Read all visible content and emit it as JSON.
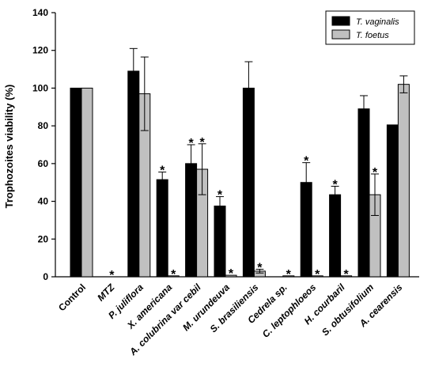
{
  "chart_data": {
    "type": "bar",
    "ylabel": "Trophozoites viability (%)",
    "ylim": [
      0,
      140
    ],
    "yticks": [
      0,
      20,
      40,
      60,
      80,
      100,
      120,
      140
    ],
    "legend_position": "top-right",
    "categories": [
      {
        "label": "Control",
        "italic": false
      },
      {
        "label": "MTZ",
        "italic": true
      },
      {
        "label": "P. juliflora",
        "italic": true
      },
      {
        "label": "X. americana",
        "italic": true
      },
      {
        "label": "A. colubrina var cebil",
        "italic": true
      },
      {
        "label": "M. urundeuva",
        "italic": true
      },
      {
        "label": "S. brasiliensis",
        "italic": true
      },
      {
        "label": "Cedrela sp.",
        "italic": true
      },
      {
        "label": "C. leptophloeos",
        "italic": true
      },
      {
        "label": "H. courbaril",
        "italic": true
      },
      {
        "label": "S. obtusifolium",
        "italic": true
      },
      {
        "label": "A. cearensis",
        "italic": true
      }
    ],
    "series": [
      {
        "name": "T. vaginalis",
        "color": "#000000",
        "values": [
          100,
          0,
          109,
          51.5,
          60,
          37.5,
          100,
          0,
          50,
          43.5,
          89,
          80.5
        ],
        "errors": [
          0,
          0,
          12,
          4,
          10,
          5,
          14,
          0,
          10.5,
          4.5,
          7,
          0
        ],
        "significant": [
          false,
          true,
          false,
          true,
          true,
          true,
          false,
          false,
          true,
          true,
          false,
          false
        ]
      },
      {
        "name": "T. foetus",
        "color": "#c0c0c0",
        "values": [
          100,
          0,
          97,
          0.5,
          57,
          0.8,
          3,
          0.5,
          0.5,
          0.5,
          43.5,
          102
        ],
        "errors": [
          0,
          0,
          19.5,
          0,
          13.5,
          0,
          1,
          0,
          0,
          0,
          11,
          4.5
        ],
        "significant": [
          false,
          false,
          false,
          true,
          true,
          true,
          true,
          true,
          true,
          true,
          true,
          false
        ]
      }
    ],
    "annotation_symbol": "*"
  }
}
